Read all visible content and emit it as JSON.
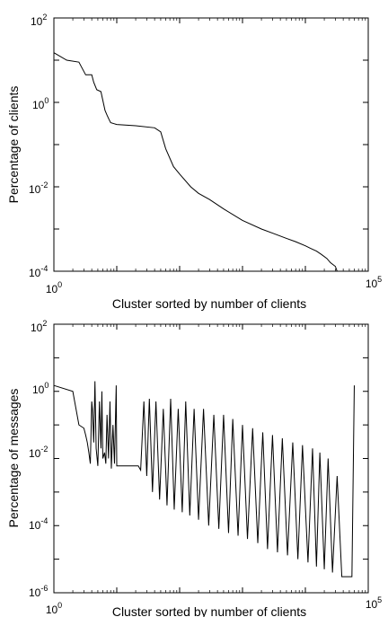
{
  "chart_data": [
    {
      "type": "line",
      "title": "",
      "xlabel": "Cluster sorted by number of clients",
      "ylabel": "Percentage of clients",
      "xscale": "log",
      "yscale": "log",
      "xlim": [
        1,
        100000
      ],
      "ylim": [
        0.0001,
        100
      ],
      "grid": false,
      "legend": "none",
      "line_color": "#000000",
      "x_ticks": [
        {
          "base": "10",
          "exp": "0"
        },
        {
          "base": "10",
          "exp": "5"
        }
      ],
      "y_ticks": [
        {
          "base": "10",
          "exp": "2"
        },
        {
          "base": "10",
          "exp": "0"
        },
        {
          "base": "10",
          "exp": "-2"
        },
        {
          "base": "10",
          "exp": "-4"
        }
      ],
      "series": [
        {
          "x": [
            1,
            1.6,
            2.5,
            3.2,
            4,
            4.3,
            4.8,
            5.6,
            6.5,
            7,
            7.5,
            8,
            10,
            20,
            40,
            50,
            60,
            80,
            100,
            150,
            200,
            300,
            500,
            1000,
            2000,
            3000,
            5000,
            7000,
            10000,
            12000,
            15000,
            18000,
            22000,
            25000,
            30000,
            32000,
            35000,
            40000,
            60000
          ],
          "y": [
            15,
            10,
            9,
            4.5,
            4.5,
            3,
            2,
            1.8,
            0.65,
            0.5,
            0.4,
            0.33,
            0.3,
            0.28,
            0.25,
            0.2,
            0.08,
            0.03,
            0.02,
            0.01,
            0.007,
            0.005,
            0.003,
            0.0016,
            0.001,
            0.0008,
            0.0006,
            0.0005,
            0.0004,
            0.00035,
            0.0003,
            0.00025,
            0.0002,
            0.00016,
            0.00013,
            0.0001,
            0.0001,
            0.0001,
            0.0001
          ]
        }
      ]
    },
    {
      "type": "line",
      "title": "",
      "xlabel": "Cluster sorted by number of clients",
      "ylabel": "Percentage of messages",
      "xscale": "log",
      "yscale": "log",
      "xlim": [
        1,
        100000
      ],
      "ylim": [
        1e-06,
        100
      ],
      "grid": false,
      "legend": "none",
      "line_color": "#000000",
      "x_ticks": [
        {
          "base": "10",
          "exp": "0"
        },
        {
          "base": "10",
          "exp": "5"
        }
      ],
      "y_ticks": [
        {
          "base": "10",
          "exp": "2"
        },
        {
          "base": "10",
          "exp": "0"
        },
        {
          "base": "10",
          "exp": "-2"
        },
        {
          "base": "10",
          "exp": "-4"
        },
        {
          "base": "10",
          "exp": "-6"
        }
      ],
      "series": [
        {
          "x": [
            1,
            2,
            2.5,
            3,
            3.2,
            3.4,
            3.6,
            3.8,
            4.0,
            4.1,
            4.3,
            4.5,
            4.7,
            5.0,
            5.3,
            5.6,
            5.8,
            6.0,
            6.4,
            6.7,
            7.0,
            7.4,
            7.8,
            8.2,
            8.7,
            9.2,
            9.8,
            10,
            12,
            15,
            18,
            20,
            22,
            24,
            27,
            30,
            33,
            37,
            42,
            48,
            55,
            63,
            72,
            82,
            95,
            110,
            125,
            145,
            170,
            200,
            240,
            290,
            350,
            420,
            500,
            600,
            700,
            850,
            1000,
            1200,
            1450,
            1750,
            2100,
            2500,
            3000,
            3600,
            4300,
            5200,
            6300,
            7600,
            9000,
            11000,
            13000,
            15000,
            17000,
            20000,
            23000,
            27000,
            32000,
            38000,
            45000,
            55000,
            60000
          ],
          "y": [
            1.5,
            1.0,
            0.1,
            0.08,
            0.05,
            0.03,
            0.015,
            0.007,
            0.5,
            0.3,
            0.03,
            2.0,
            0.02,
            0.006,
            0.5,
            0.02,
            1.0,
            0.01,
            0.015,
            0.007,
            0.2,
            0.01,
            0.5,
            0.005,
            0.1,
            0.007,
            1.5,
            0.006,
            0.006,
            0.006,
            0.006,
            0.006,
            0.006,
            0.0045,
            0.5,
            0.003,
            0.6,
            0.001,
            0.5,
            0.0006,
            0.3,
            0.0004,
            0.6,
            0.0003,
            0.3,
            0.00025,
            0.5,
            0.0002,
            0.3,
            0.00015,
            0.3,
            0.0001,
            0.2,
            8e-05,
            0.2,
            6e-05,
            0.15,
            5e-05,
            0.1,
            4e-05,
            0.08,
            3e-05,
            0.06,
            2e-05,
            0.05,
            1.6e-05,
            0.04,
            1.3e-05,
            0.03,
            1e-05,
            0.025,
            8e-06,
            0.02,
            6e-06,
            0.015,
            5e-06,
            0.01,
            4e-06,
            0.003,
            3e-06,
            3e-06,
            3e-06,
            1.5
          ]
        }
      ]
    }
  ]
}
